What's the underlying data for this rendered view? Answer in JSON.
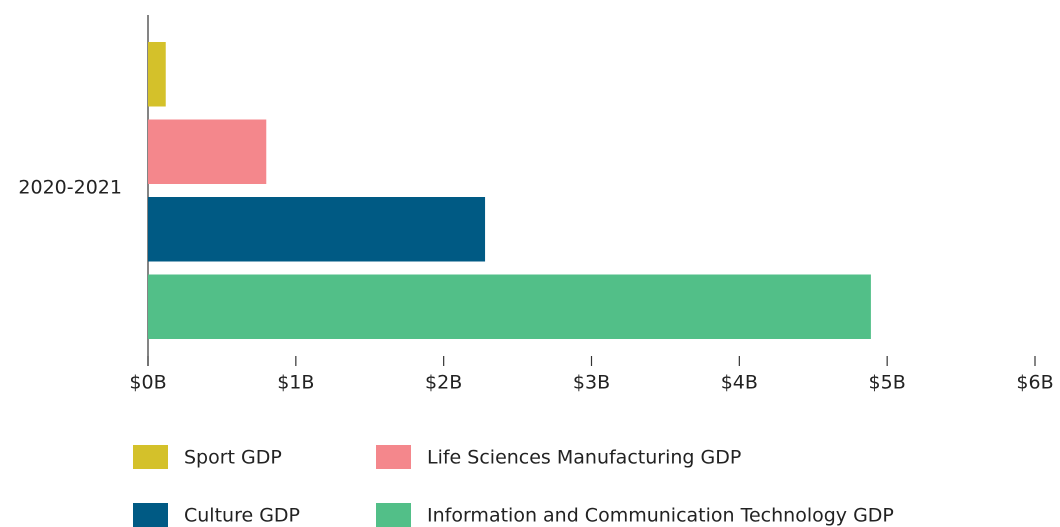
{
  "chart_data": {
    "type": "bar",
    "orientation": "horizontal",
    "categories": [
      "2020-2021"
    ],
    "series": [
      {
        "name": "Sport GDP",
        "color": "#d4c12a",
        "values": [
          0.12
        ]
      },
      {
        "name": "Life Sciences Manufacturing GDP",
        "color": "#f4878c",
        "values": [
          0.8
        ]
      },
      {
        "name": "Culture GDP",
        "color": "#005a84",
        "values": [
          2.28
        ]
      },
      {
        "name": "Information and Communication Technology GDP",
        "color": "#52bf88",
        "values": [
          4.89
        ]
      }
    ],
    "xlim": [
      0,
      6
    ],
    "xticks": [
      {
        "value": 0,
        "label": "$0B"
      },
      {
        "value": 1,
        "label": "$1B"
      },
      {
        "value": 2,
        "label": "$2B"
      },
      {
        "value": 3,
        "label": "$3B"
      },
      {
        "value": 4,
        "label": "$4B"
      },
      {
        "value": 5,
        "label": "$5B"
      },
      {
        "value": 6,
        "label": "$6B"
      }
    ],
    "legend": "bottom"
  }
}
